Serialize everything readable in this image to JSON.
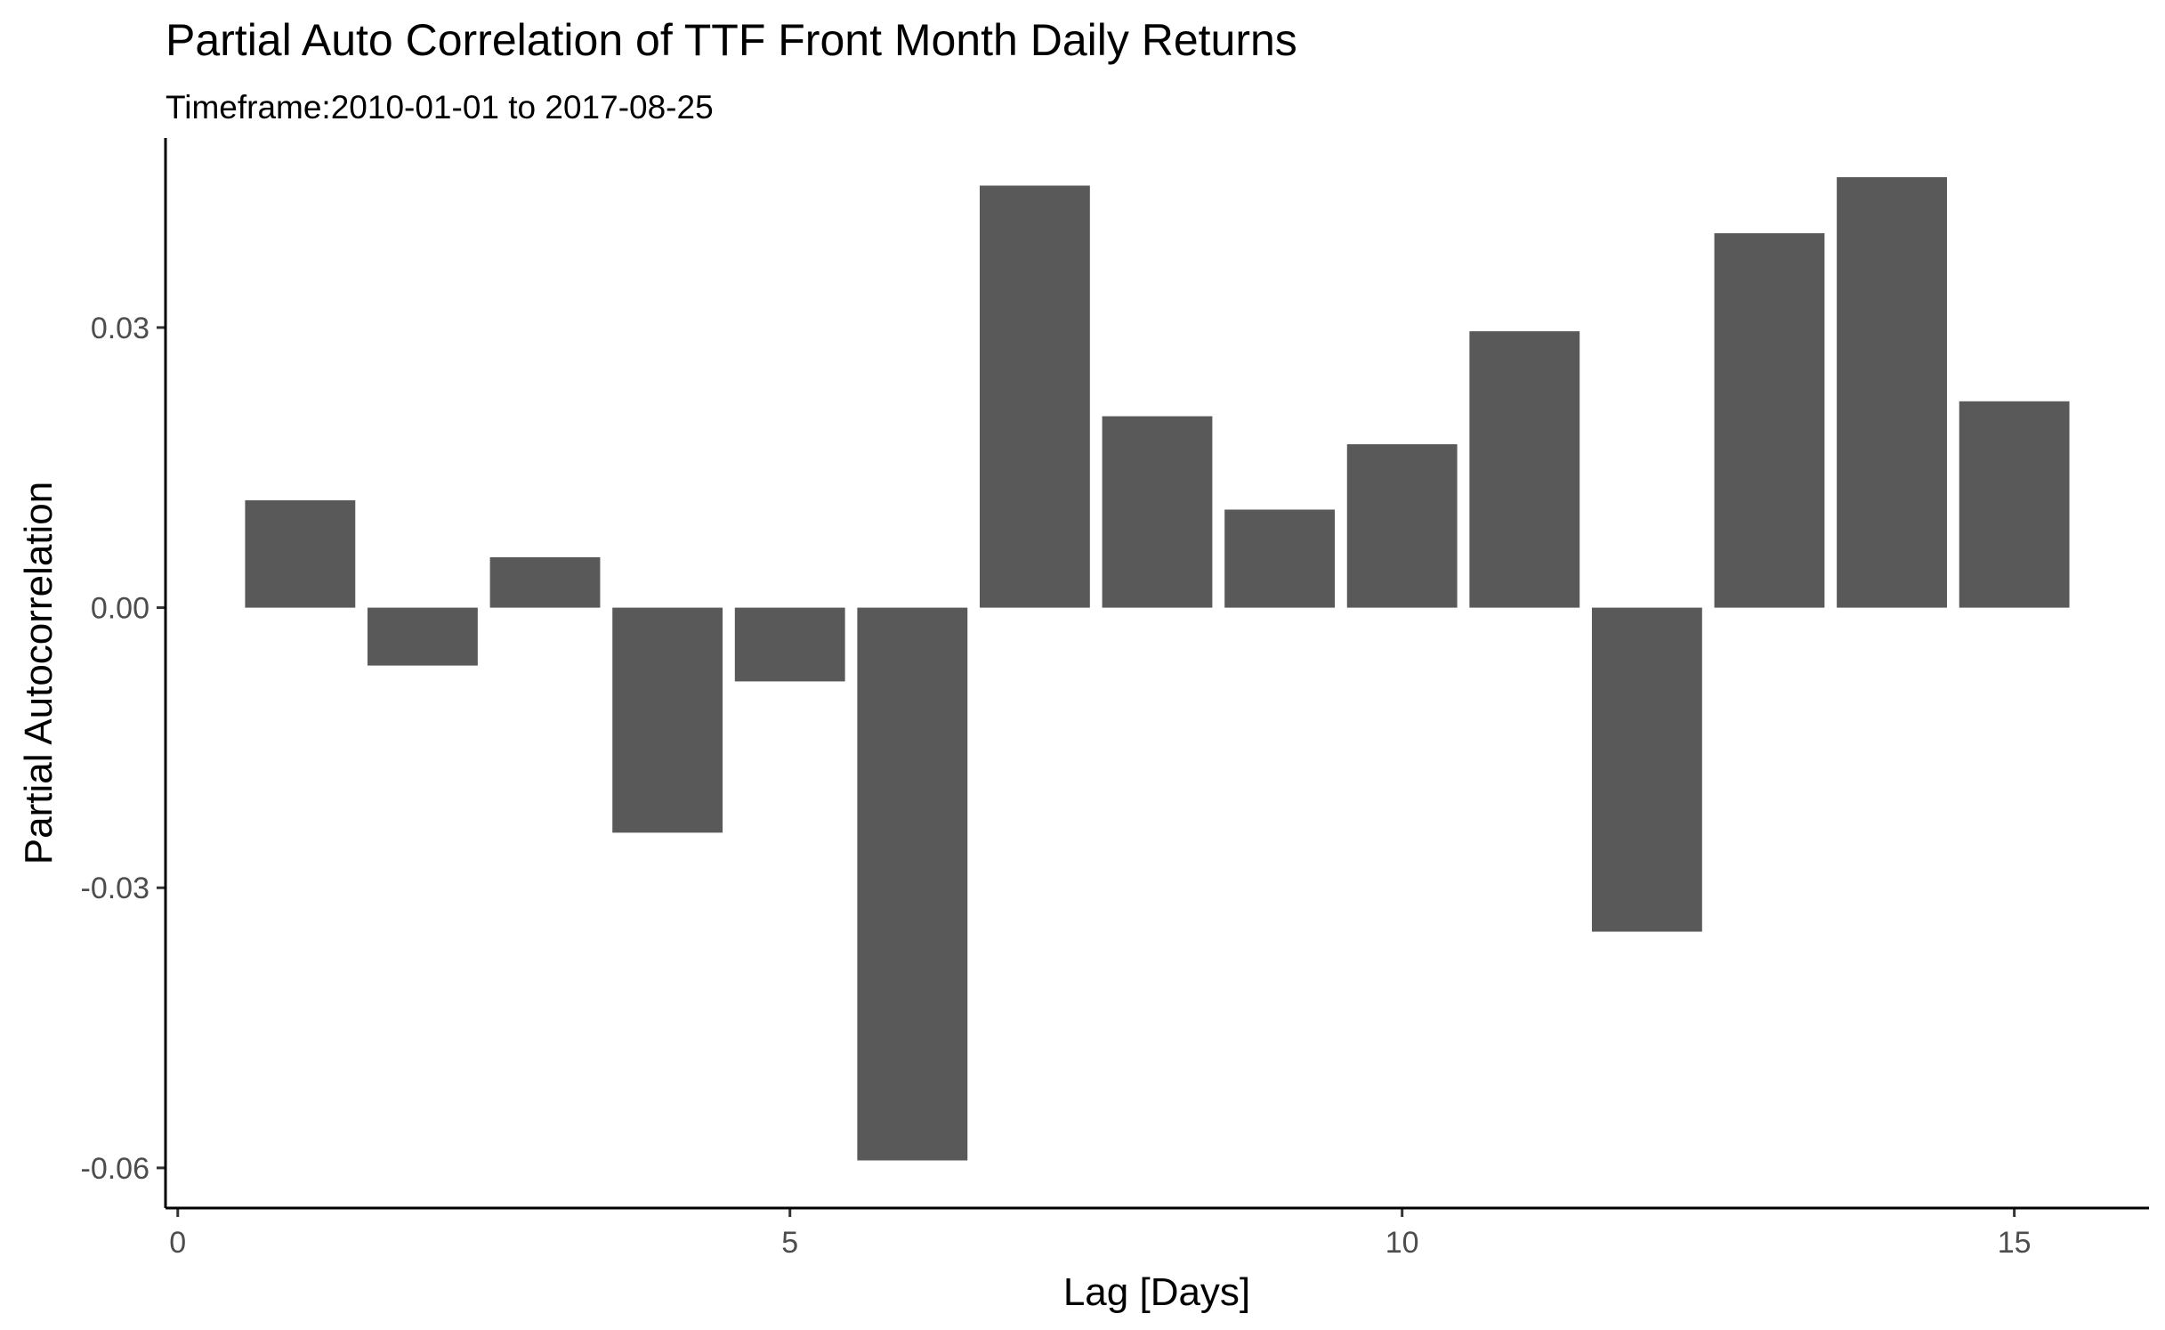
{
  "chart_data": {
    "type": "bar",
    "title": "Partial Auto Correlation of TTF Front Month Daily Returns",
    "subtitle": "Timeframe:2010-01-01 to 2017-08-25",
    "xlabel": "Lag [Days]",
    "ylabel": "Partial Autocorrelation",
    "x": [
      1,
      2,
      3,
      4,
      5,
      6,
      7,
      8,
      9,
      10,
      11,
      12,
      13,
      14,
      15
    ],
    "values": [
      0.0115,
      -0.0062,
      0.0054,
      -0.0241,
      -0.0079,
      -0.0592,
      0.0452,
      0.0205,
      0.0105,
      0.0175,
      0.0296,
      -0.0347,
      0.0401,
      0.0461,
      0.0221
    ],
    "xlim": [
      -0.1,
      16.1
    ],
    "ylim": [
      -0.0643,
      0.0503
    ],
    "xticks": [
      0,
      5,
      10,
      15
    ],
    "xtick_labels": [
      "0",
      "5",
      "10",
      "15"
    ],
    "yticks": [
      -0.06,
      -0.03,
      0.0,
      0.03
    ],
    "ytick_labels": [
      "-0.06",
      "-0.03",
      "0.00",
      "0.03"
    ],
    "bar_width": 0.9,
    "bar_color": "#595959",
    "grid": false,
    "legend": "none"
  }
}
